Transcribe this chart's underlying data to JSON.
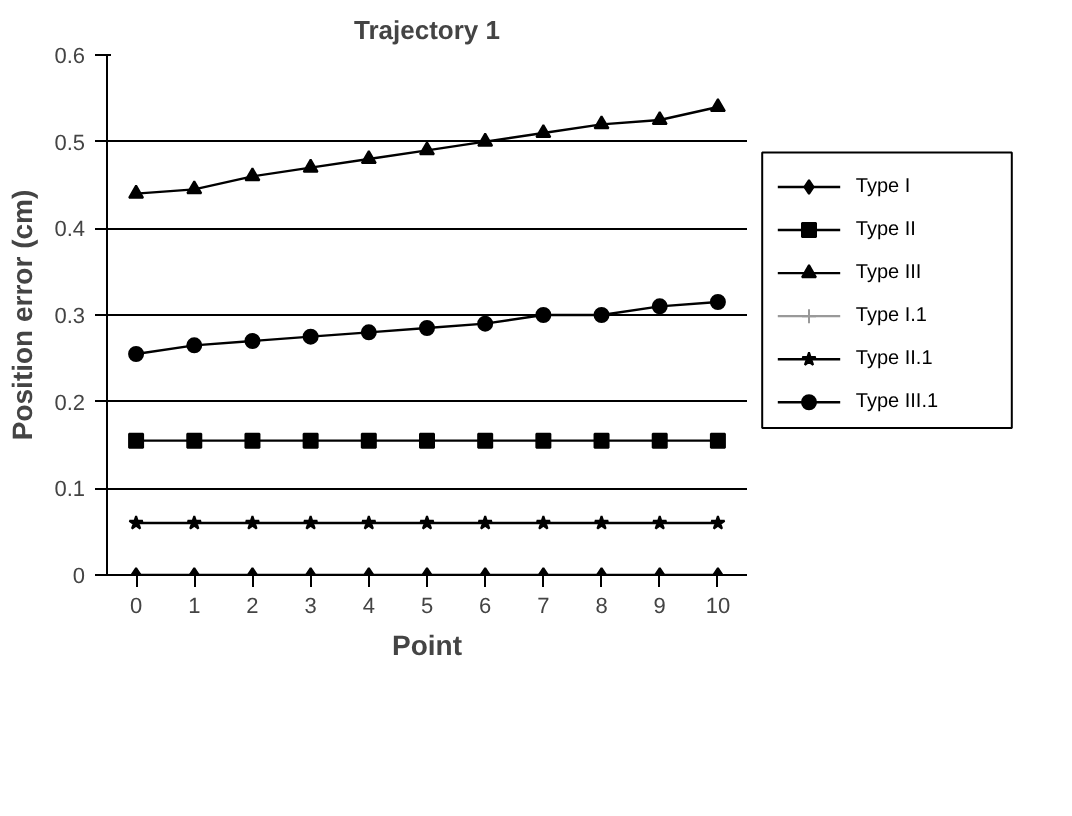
{
  "chart_data": {
    "type": "line",
    "title": "Trajectory 1",
    "xlabel": "Point",
    "ylabel": "Position error (cm)",
    "x": [
      0,
      1,
      2,
      3,
      4,
      5,
      6,
      7,
      8,
      9,
      10
    ],
    "xlim": [
      -0.5,
      10.5
    ],
    "xticks": [
      0,
      1,
      2,
      3,
      4,
      5,
      6,
      7,
      8,
      9,
      10
    ],
    "ylim": [
      0,
      0.6
    ],
    "yticks": [
      0,
      0.1,
      0.2,
      0.3,
      0.4,
      0.5,
      0.6
    ],
    "grid": "y",
    "legend": "right",
    "series": [
      {
        "name": "Type I",
        "color": "#000000",
        "marker": "diamond",
        "values": [
          0,
          0,
          0,
          0,
          0,
          0,
          0,
          0,
          0,
          0,
          0
        ]
      },
      {
        "name": "Type II",
        "color": "#000000",
        "marker": "square",
        "values": [
          0.155,
          0.155,
          0.155,
          0.155,
          0.155,
          0.155,
          0.155,
          0.155,
          0.155,
          0.155,
          0.155
        ]
      },
      {
        "name": "Type III",
        "color": "#000000",
        "marker": "triangle",
        "values": [
          0.44,
          0.445,
          0.46,
          0.47,
          0.48,
          0.49,
          0.5,
          0.51,
          0.52,
          0.525,
          0.54
        ]
      },
      {
        "name": "Type I.1",
        "color": "#999999",
        "marker": "cross",
        "values": [
          null,
          null,
          null,
          null,
          null,
          null,
          null,
          null,
          null,
          null,
          null
        ]
      },
      {
        "name": "Type II.1",
        "color": "#000000",
        "marker": "star",
        "values": [
          0.06,
          0.06,
          0.06,
          0.06,
          0.06,
          0.06,
          0.06,
          0.06,
          0.06,
          0.06,
          0.06
        ]
      },
      {
        "name": "Type III.1",
        "color": "#000000",
        "marker": "circle",
        "values": [
          0.255,
          0.265,
          0.27,
          0.275,
          0.28,
          0.285,
          0.29,
          0.3,
          0.3,
          0.31,
          0.315
        ]
      }
    ]
  }
}
